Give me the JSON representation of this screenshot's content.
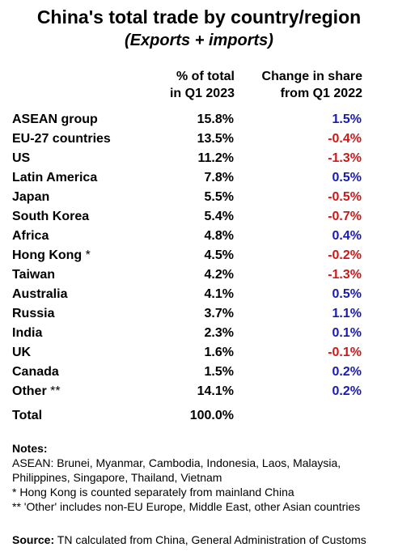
{
  "header": {
    "title": "China's total trade by country/region",
    "subtitle": "(Exports + imports)",
    "col_pct_line1": "% of total",
    "col_pct_line2": "in Q1 2023",
    "col_chg_line1": "Change in share",
    "col_chg_line2": "from Q1 2022"
  },
  "colors": {
    "positive": "#1a1ab4",
    "negative": "#d01818"
  },
  "chart_data": {
    "type": "table",
    "title": "China's total trade by country/region",
    "subtitle": "(Exports + imports)",
    "columns": [
      "% of total in Q1 2023",
      "Change in share from Q1 2022"
    ],
    "rows": [
      {
        "name": "ASEAN group",
        "mark": "",
        "pct": "15.8%",
        "chg": "1.5%",
        "sign": "pos"
      },
      {
        "name": "EU-27 countries",
        "mark": "",
        "pct": "13.5%",
        "chg": "-0.4%",
        "sign": "neg"
      },
      {
        "name": "US",
        "mark": "",
        "pct": "11.2%",
        "chg": "-1.3%",
        "sign": "neg"
      },
      {
        "name": "Latin America",
        "mark": "",
        "pct": "7.8%",
        "chg": "0.5%",
        "sign": "pos"
      },
      {
        "name": "Japan",
        "mark": "",
        "pct": "5.5%",
        "chg": "-0.5%",
        "sign": "neg"
      },
      {
        "name": "South Korea",
        "mark": "",
        "pct": "5.4%",
        "chg": "-0.7%",
        "sign": "neg"
      },
      {
        "name": "Africa",
        "mark": "",
        "pct": "4.8%",
        "chg": "0.4%",
        "sign": "pos"
      },
      {
        "name": "Hong Kong",
        "mark": " *",
        "pct": "4.5%",
        "chg": "-0.2%",
        "sign": "neg"
      },
      {
        "name": "Taiwan",
        "mark": "",
        "pct": "4.2%",
        "chg": "-1.3%",
        "sign": "neg"
      },
      {
        "name": "Australia",
        "mark": "",
        "pct": "4.1%",
        "chg": "0.5%",
        "sign": "pos"
      },
      {
        "name": "Russia",
        "mark": "",
        "pct": "3.7%",
        "chg": "1.1%",
        "sign": "pos"
      },
      {
        "name": "India",
        "mark": "",
        "pct": "2.3%",
        "chg": "0.1%",
        "sign": "pos"
      },
      {
        "name": "UK",
        "mark": "",
        "pct": "1.6%",
        "chg": "-0.1%",
        "sign": "neg"
      },
      {
        "name": "Canada",
        "mark": "",
        "pct": "1.5%",
        "chg": "0.2%",
        "sign": "pos"
      },
      {
        "name": "Other",
        "mark": " **",
        "pct": "14.1%",
        "chg": "0.2%",
        "sign": "pos"
      }
    ],
    "total": {
      "name": "Total",
      "pct": "100.0%"
    }
  },
  "notes": {
    "heading": "Notes:",
    "asean_line1": "ASEAN: Brunei, Myanmar, Cambodia, Indonesia, Laos, Malaysia,",
    "asean_line2": "Philippines, Singapore, Thailand, Vietnam",
    "hk": "* Hong Kong is counted separately from mainland China",
    "other": "** 'Other' includes non-EU Europe, Middle East, other Asian countries"
  },
  "source": {
    "label": "Source:",
    "text": " TN calculated from China, General Administration of Customs"
  }
}
